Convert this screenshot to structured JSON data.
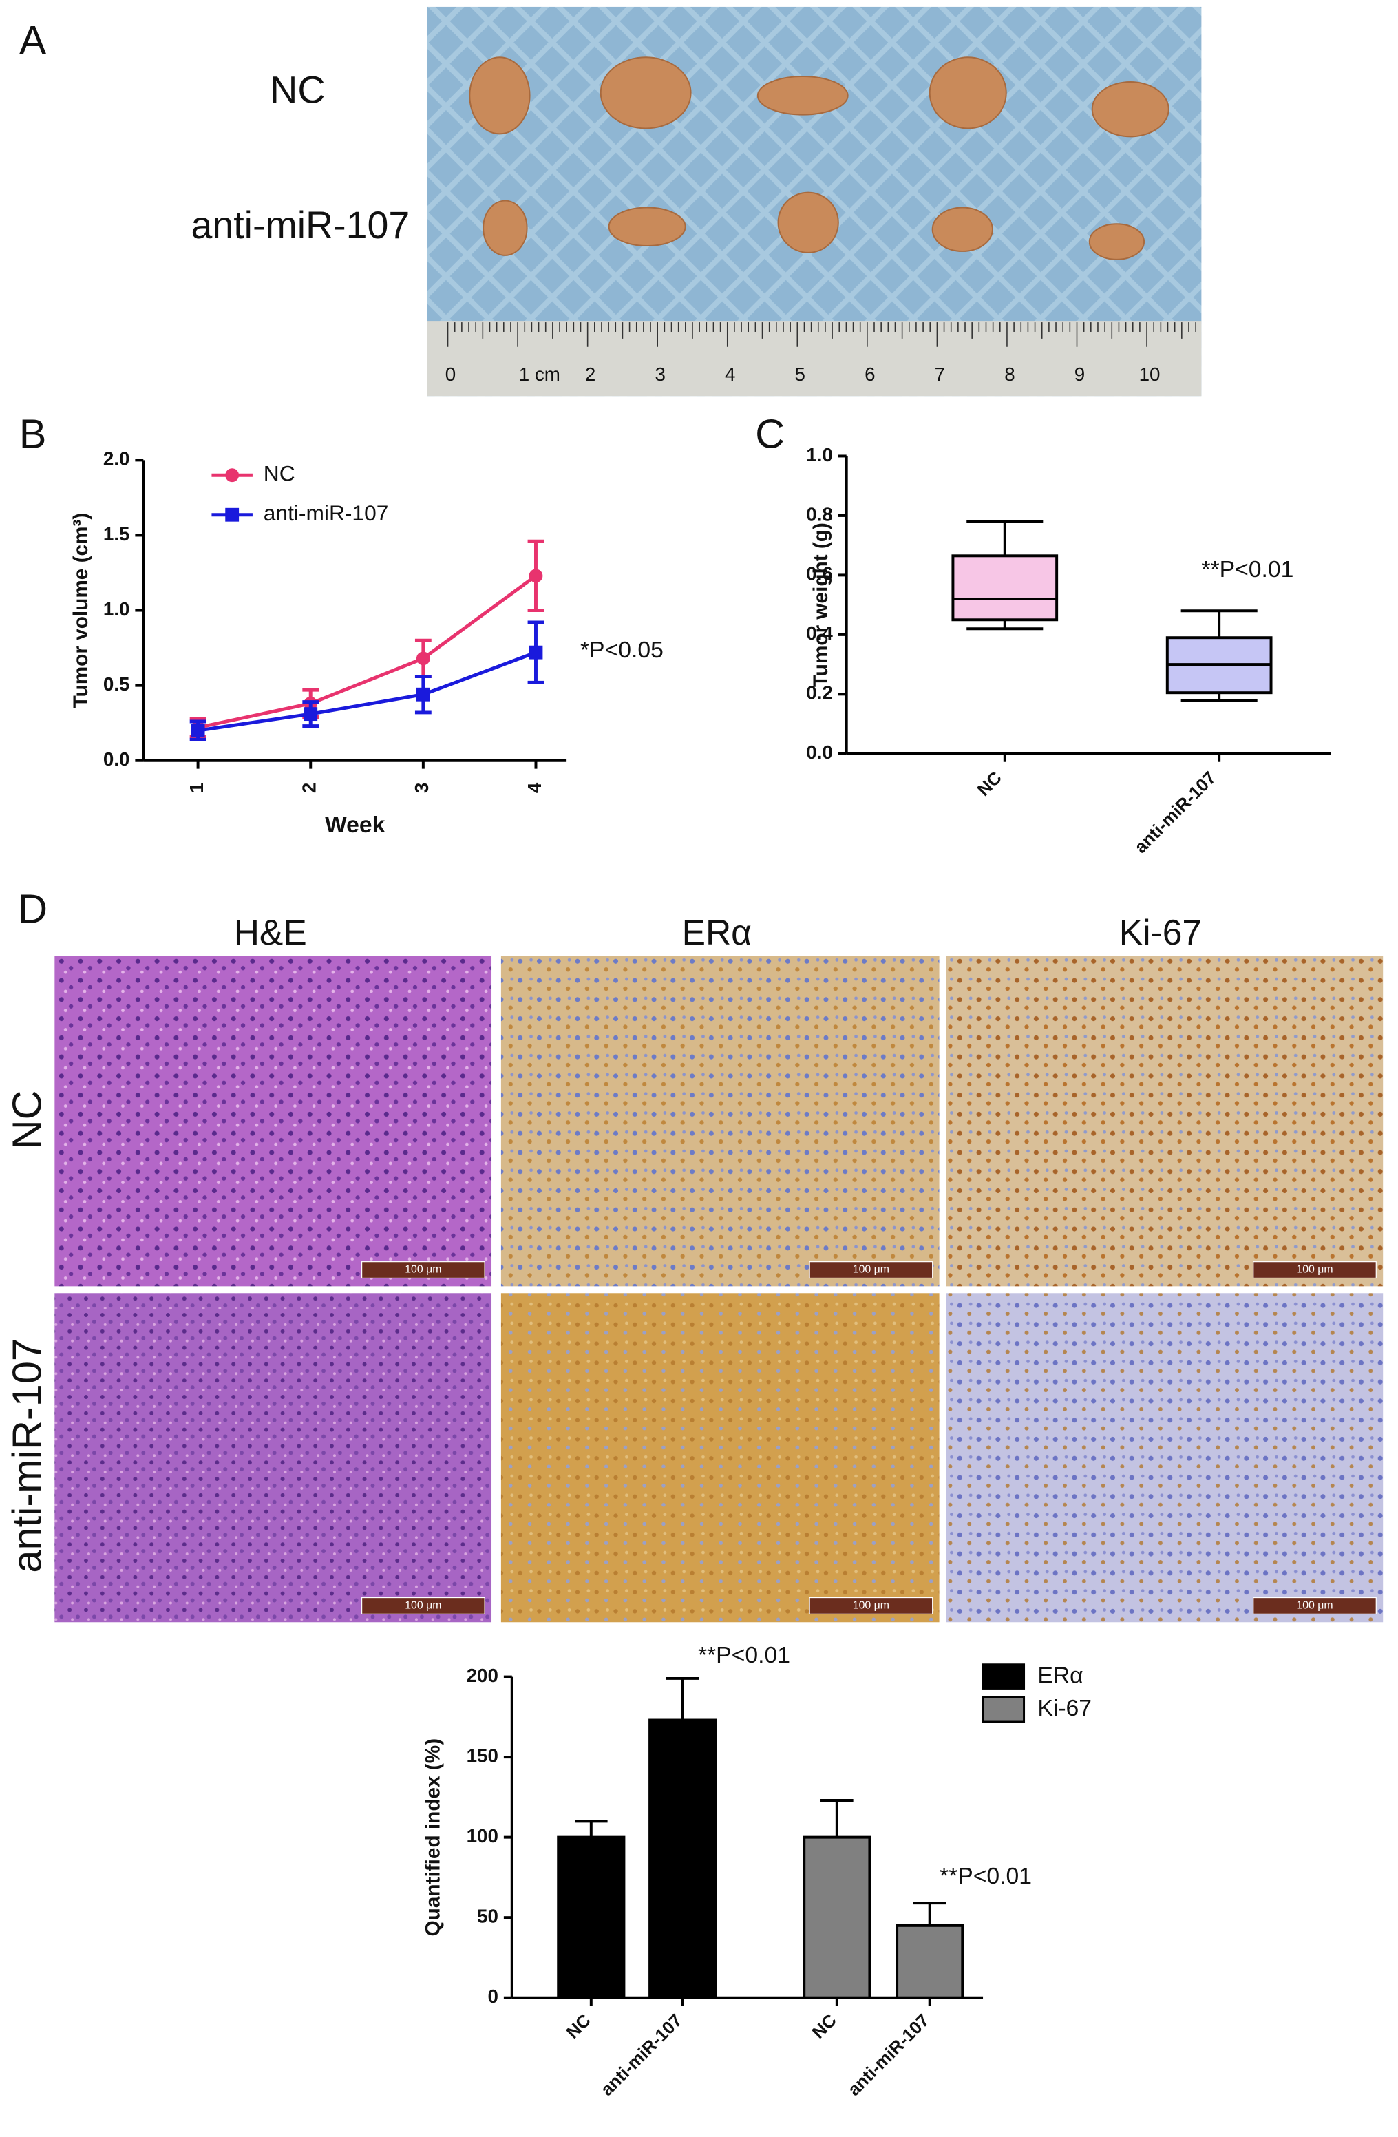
{
  "panels": {
    "A": {
      "letter": "A",
      "rows": [
        "NC",
        "anti-miR-107"
      ],
      "ruler": [
        "0",
        "1 cm",
        "2",
        "3",
        "4",
        "5",
        "6",
        "7",
        "8",
        "9",
        "10"
      ]
    },
    "D": {
      "letter": "D",
      "columns": [
        "H&E",
        "ERα",
        "Ki-67"
      ],
      "rows": [
        "NC",
        "anti-miR-107"
      ],
      "scale_bar": "100 μm"
    }
  },
  "chart_data": [
    {
      "type": "line",
      "panel_label": "B",
      "x_label": "Week",
      "y_label": "Tumor volume (cm³)",
      "categories": [
        "1",
        "2",
        "3",
        "4"
      ],
      "ylim": [
        0,
        2
      ],
      "yticks": [
        {
          "value": 0,
          "label": "0.0"
        },
        0.5,
        {
          "value": 1,
          "label": "1.0"
        },
        1.5,
        {
          "value": 2,
          "label": "2.0"
        }
      ],
      "series": [
        {
          "name": "NC",
          "color": "#e8336e",
          "marker": "circle",
          "values": [
            0.22,
            0.38,
            0.68,
            1.23
          ],
          "errors": [
            0.06,
            0.09,
            0.12,
            0.23
          ]
        },
        {
          "name": "anti-miR-107",
          "color": "#1a1adc",
          "marker": "square",
          "values": [
            0.2,
            0.31,
            0.44,
            0.72
          ],
          "errors": [
            0.06,
            0.08,
            0.12,
            0.2
          ]
        }
      ],
      "annotation": "*P<0.05"
    },
    {
      "type": "box",
      "panel_label": "C",
      "y_label": "Tumor weight (g)",
      "categories": [
        "NC",
        "anti-miR-107"
      ],
      "ylim": [
        0,
        1
      ],
      "yticks": [
        {
          "value": 0,
          "label": "0.0"
        },
        0.2,
        0.4,
        0.6,
        0.8,
        {
          "value": 1,
          "label": "1.0"
        }
      ],
      "boxes": [
        {
          "min": 0.42,
          "q1": 0.45,
          "median": 0.52,
          "q3": 0.665,
          "max": 0.78,
          "color": "#f7c6e6"
        },
        {
          "min": 0.18,
          "q1": 0.205,
          "median": 0.3,
          "q3": 0.39,
          "max": 0.48,
          "color": "#c6c6f5"
        }
      ],
      "annotation": "**P<0.01"
    },
    {
      "type": "bar",
      "y_label": "Quantified index (%)",
      "categories": [
        "NC",
        "anti-miR-107",
        "NC",
        "anti-miR-107"
      ],
      "ylim": [
        0,
        200
      ],
      "yticks": [
        0,
        50,
        100,
        150,
        200
      ],
      "series": [
        {
          "name": "ERα",
          "color": "#000000",
          "values": [
            100,
            173,
            null,
            null
          ],
          "errors": [
            10,
            26,
            null,
            null
          ]
        },
        {
          "name": "Ki-67",
          "color": "#808080",
          "values": [
            null,
            null,
            100,
            45
          ],
          "errors": [
            null,
            null,
            23,
            14
          ]
        }
      ],
      "annotations": [
        "**P<0.01",
        "**P<0.01"
      ]
    }
  ]
}
